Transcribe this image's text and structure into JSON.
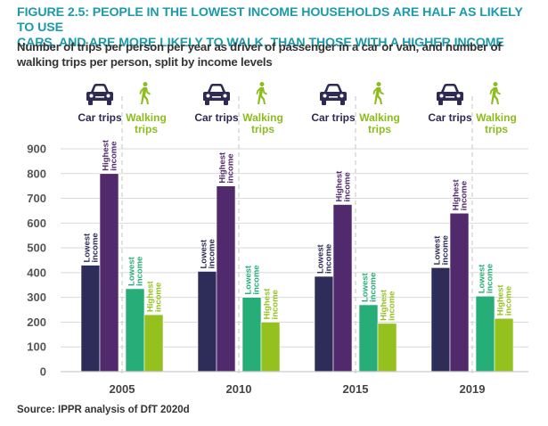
{
  "figure": {
    "title_line1": "FIGURE 2.5: PEOPLE IN THE LOWEST INCOME HOUSEHOLDS ARE HALF AS LIKELY TO USE",
    "title_line2": "CARS, AND ARE MORE LIKELY TO WALK, THAN THOSE WITH A HIGHER INCOME",
    "subtitle_line1": "Number of trips per person per year as driver of passenger in a car or van, and number of",
    "subtitle_line2": "walking trips per person, split by income levels",
    "source": "Source: IPPR analysis of DfT 2020d"
  },
  "legend": {
    "car_label": "Car trips",
    "walk_label_line1": "Walking",
    "walk_label_line2": "trips",
    "car_icon": "car-icon",
    "walk_icon": "walking-person-icon"
  },
  "colors": {
    "car_lowest": "#2e2c58",
    "car_highest": "#512a6e",
    "walk_lowest": "#27ae78",
    "walk_highest": "#95c11f",
    "title": "#1b9aaa",
    "car_text": "#2e2a56",
    "walk_text": "#8cbd1d",
    "grid": "#d9d9d9"
  },
  "chart_data": {
    "type": "bar",
    "title": "FIGURE 2.5: PEOPLE IN THE LOWEST INCOME HOUSEHOLDS ARE HALF AS LIKELY TO USE CARS, AND ARE MORE LIKELY TO WALK, THAN THOSE WITH A HIGHER INCOME",
    "subtitle": "Number of trips per person per year as driver of passenger in a car or van, and number of walking trips per person, split by income levels",
    "xlabel": "",
    "ylabel": "",
    "categories": [
      "2005",
      "2010",
      "2015",
      "2019"
    ],
    "ylim": [
      0,
      900
    ],
    "yticks": [
      0,
      100,
      200,
      300,
      400,
      500,
      600,
      700,
      800,
      900
    ],
    "grid": true,
    "series": [
      {
        "name": "Car trips - Lowest income",
        "group": "Car trips",
        "bar_label_line1": "Lowest",
        "bar_label_line2": "income",
        "values": [
          430,
          405,
          385,
          420
        ]
      },
      {
        "name": "Car trips - Highest income",
        "group": "Car trips",
        "bar_label_line1": "Highest",
        "bar_label_line2": "income",
        "values": [
          800,
          750,
          675,
          640
        ]
      },
      {
        "name": "Walking trips - Lowest income",
        "group": "Walking trips",
        "bar_label_line1": "Lowest",
        "bar_label_line2": "income",
        "values": [
          335,
          300,
          270,
          305
        ]
      },
      {
        "name": "Walking trips - Highest income",
        "group": "Walking trips",
        "bar_label_line1": "Highest",
        "bar_label_line2": "income",
        "values": [
          230,
          200,
          195,
          215
        ]
      }
    ],
    "source": "Source: IPPR analysis of DfT 2020d"
  }
}
